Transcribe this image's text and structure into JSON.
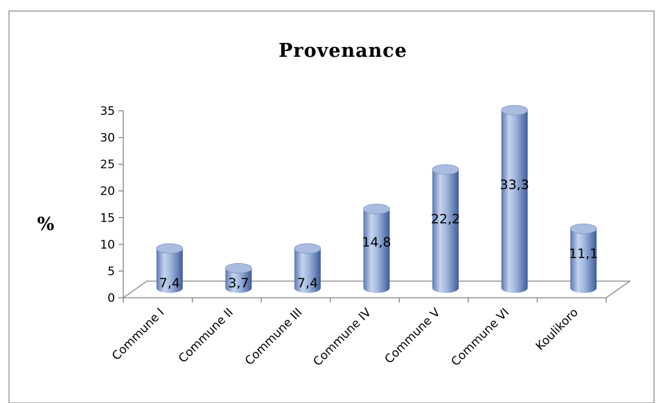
{
  "chart_data": {
    "type": "bar",
    "title": "Provenance",
    "xlabel": "",
    "ylabel": "%",
    "categories": [
      "Commune I",
      "Commune II",
      "Commune III",
      "Commune IV",
      "Commune V",
      "Commune VI",
      "Koulikoro"
    ],
    "values": [
      7.4,
      3.7,
      7.4,
      14.8,
      22.2,
      33.3,
      11.1
    ],
    "data_labels": [
      "7,4",
      "3,7",
      "7,4",
      "14,8",
      "22,2",
      "33,3",
      "11,1"
    ],
    "yticks": [
      "0",
      "5",
      "10",
      "15",
      "20",
      "25",
      "30",
      "35"
    ],
    "ylim": [
      0,
      35
    ],
    "grid": false,
    "legend": "none",
    "style": "3d-cylinder",
    "colors": {
      "bar_light": "#c3d1ea",
      "bar_mid": "#8fa7d4",
      "bar_dark": "#4a6aa8",
      "bar_top": "#aabde0",
      "axis": "#808080"
    }
  }
}
